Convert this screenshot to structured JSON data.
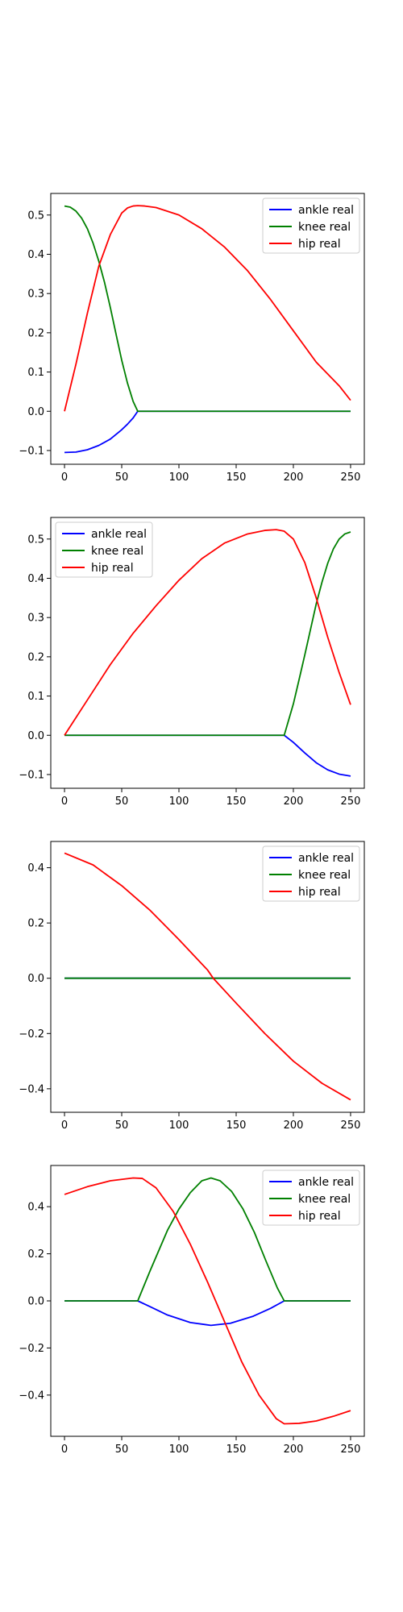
{
  "chart_data": [
    {
      "type": "line",
      "title": "",
      "xlabel": "",
      "ylabel": "",
      "xlim": [
        -12,
        262
      ],
      "ylim": [
        -0.135,
        0.555
      ],
      "xticks": [
        0,
        50,
        100,
        150,
        200,
        250
      ],
      "xtick_labels": [
        "0",
        "50",
        "100",
        "150",
        "200",
        "250"
      ],
      "yticks": [
        -0.1,
        0.0,
        0.1,
        0.2,
        0.3,
        0.4,
        0.5
      ],
      "ytick_labels": [
        "−0.1",
        "0.0",
        "0.1",
        "0.2",
        "0.3",
        "0.4",
        "0.5"
      ],
      "legend_position": "upper right",
      "series": [
        {
          "name": "ankle real",
          "color": "#0000ff",
          "x": [
            0,
            10,
            20,
            30,
            40,
            50,
            55,
            60,
            64,
            80,
            100,
            150,
            200,
            250
          ],
          "y": [
            -0.105,
            -0.104,
            -0.098,
            -0.087,
            -0.071,
            -0.047,
            -0.033,
            -0.017,
            0.0,
            0.0,
            0.0,
            0.0,
            0.0,
            0.0
          ]
        },
        {
          "name": "knee real",
          "color": "#008000",
          "x": [
            0,
            5,
            10,
            15,
            20,
            25,
            30,
            35,
            40,
            45,
            50,
            55,
            60,
            64,
            100,
            150,
            200,
            250
          ],
          "y": [
            0.523,
            0.52,
            0.51,
            0.492,
            0.465,
            0.428,
            0.382,
            0.328,
            0.265,
            0.197,
            0.13,
            0.072,
            0.025,
            0.0,
            0.0,
            0.0,
            0.0,
            0.0
          ]
        },
        {
          "name": "hip real",
          "color": "#ff0000",
          "x": [
            0,
            10,
            20,
            30,
            40,
            50,
            55,
            60,
            64,
            70,
            80,
            100,
            120,
            140,
            160,
            180,
            200,
            220,
            240,
            250
          ],
          "y": [
            0.0,
            0.12,
            0.25,
            0.37,
            0.45,
            0.505,
            0.518,
            0.523,
            0.524,
            0.523,
            0.519,
            0.5,
            0.465,
            0.418,
            0.358,
            0.285,
            0.205,
            0.125,
            0.065,
            0.028
          ]
        }
      ]
    },
    {
      "type": "line",
      "title": "",
      "xlabel": "",
      "ylabel": "",
      "xlim": [
        -12,
        262
      ],
      "ylim": [
        -0.135,
        0.555
      ],
      "xticks": [
        0,
        50,
        100,
        150,
        200,
        250
      ],
      "xtick_labels": [
        "0",
        "50",
        "100",
        "150",
        "200",
        "250"
      ],
      "yticks": [
        -0.1,
        0.0,
        0.1,
        0.2,
        0.3,
        0.4,
        0.5
      ],
      "ytick_labels": [
        "−0.1",
        "0.0",
        "0.1",
        "0.2",
        "0.3",
        "0.4",
        "0.5"
      ],
      "legend_position": "upper left",
      "series": [
        {
          "name": "ankle real",
          "color": "#0000ff",
          "x": [
            0,
            50,
            100,
            150,
            192,
            200,
            210,
            220,
            230,
            240,
            250
          ],
          "y": [
            0.0,
            0.0,
            0.0,
            0.0,
            0.0,
            -0.018,
            -0.045,
            -0.07,
            -0.088,
            -0.099,
            -0.104
          ]
        },
        {
          "name": "knee real",
          "color": "#008000",
          "x": [
            0,
            50,
            100,
            150,
            192,
            200,
            205,
            210,
            215,
            220,
            225,
            230,
            235,
            240,
            245,
            250
          ],
          "y": [
            0.0,
            0.0,
            0.0,
            0.0,
            0.0,
            0.08,
            0.142,
            0.205,
            0.27,
            0.335,
            0.39,
            0.438,
            0.475,
            0.5,
            0.513,
            0.518
          ]
        },
        {
          "name": "hip real",
          "color": "#ff0000",
          "x": [
            0,
            20,
            40,
            60,
            80,
            100,
            120,
            140,
            160,
            175,
            185,
            192,
            200,
            210,
            220,
            230,
            240,
            250
          ],
          "y": [
            0.0,
            0.09,
            0.18,
            0.26,
            0.33,
            0.395,
            0.45,
            0.49,
            0.513,
            0.522,
            0.524,
            0.52,
            0.5,
            0.44,
            0.35,
            0.25,
            0.16,
            0.078
          ]
        }
      ]
    },
    {
      "type": "line",
      "title": "",
      "xlabel": "",
      "ylabel": "",
      "xlim": [
        -12,
        262
      ],
      "ylim": [
        -0.485,
        0.495
      ],
      "xticks": [
        0,
        50,
        100,
        150,
        200,
        250
      ],
      "xtick_labels": [
        "0",
        "50",
        "100",
        "150",
        "200",
        "250"
      ],
      "yticks": [
        -0.4,
        -0.2,
        0.0,
        0.2,
        0.4
      ],
      "ytick_labels": [
        "−0.4",
        "−0.2",
        "0.0",
        "0.2",
        "0.4"
      ],
      "legend_position": "upper right",
      "series": [
        {
          "name": "ankle real",
          "color": "#0000ff",
          "x": [
            0,
            250
          ],
          "y": [
            0.0,
            0.0
          ]
        },
        {
          "name": "knee real",
          "color": "#008000",
          "x": [
            0,
            250
          ],
          "y": [
            0.0,
            0.0
          ]
        },
        {
          "name": "hip real",
          "color": "#ff0000",
          "x": [
            0,
            25,
            50,
            75,
            100,
            125,
            130,
            150,
            175,
            200,
            225,
            250
          ],
          "y": [
            0.453,
            0.41,
            0.335,
            0.245,
            0.14,
            0.03,
            0.0,
            -0.09,
            -0.2,
            -0.3,
            -0.38,
            -0.44
          ]
        }
      ]
    },
    {
      "type": "line",
      "title": "",
      "xlabel": "",
      "ylabel": "",
      "xlim": [
        -12,
        262
      ],
      "ylim": [
        -0.575,
        0.575
      ],
      "xticks": [
        0,
        50,
        100,
        150,
        200,
        250
      ],
      "xtick_labels": [
        "0",
        "50",
        "100",
        "150",
        "200",
        "250"
      ],
      "yticks": [
        -0.4,
        -0.2,
        0.0,
        0.2,
        0.4
      ],
      "ytick_labels": [
        "−0.4",
        "−0.2",
        "0.0",
        "0.2",
        "0.4"
      ],
      "legend_position": "upper right",
      "series": [
        {
          "name": "ankle real",
          "color": "#0000ff",
          "x": [
            0,
            64,
            75,
            90,
            110,
            128,
            145,
            165,
            180,
            192,
            250
          ],
          "y": [
            0.0,
            0.0,
            -0.025,
            -0.06,
            -0.092,
            -0.104,
            -0.095,
            -0.065,
            -0.032,
            0.0,
            0.0
          ]
        },
        {
          "name": "knee real",
          "color": "#008000",
          "x": [
            0,
            64,
            75,
            90,
            100,
            110,
            120,
            128,
            136,
            146,
            156,
            166,
            176,
            186,
            192,
            250
          ],
          "y": [
            0.0,
            0.0,
            0.13,
            0.3,
            0.39,
            0.46,
            0.51,
            0.522,
            0.51,
            0.465,
            0.39,
            0.29,
            0.17,
            0.055,
            0.0,
            0.0
          ]
        },
        {
          "name": "hip real",
          "color": "#ff0000",
          "x": [
            0,
            20,
            40,
            60,
            68,
            80,
            95,
            110,
            125,
            140,
            155,
            170,
            185,
            192,
            205,
            220,
            235,
            250
          ],
          "y": [
            0.452,
            0.485,
            0.51,
            0.522,
            0.52,
            0.48,
            0.38,
            0.24,
            0.08,
            -0.09,
            -0.26,
            -0.4,
            -0.5,
            -0.522,
            -0.52,
            -0.51,
            -0.49,
            -0.466
          ]
        }
      ]
    }
  ]
}
